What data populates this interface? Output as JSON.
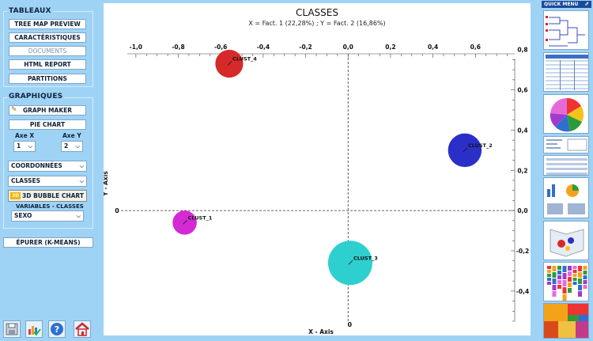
{
  "tableaux": {
    "title": "TABLEAUX",
    "buttons": [
      "TREE MAP PREVIEW",
      "CARACTÉRISTIQUES",
      "DOCUMENTS",
      "HTML REPORT",
      "PARTITIONS"
    ]
  },
  "graphiques": {
    "title": "GRAPHIQUES",
    "graph_maker": "GRAPH MAKER",
    "pie_chart": "PIE CHART",
    "axe_x_label": "Axe X",
    "axe_x_value": "1",
    "axe_y_label": "Axe Y",
    "axe_y_value": "2",
    "coordonnees": "COORDONNÉES",
    "classes": "CLASSES",
    "bubble_badge": "3D",
    "bubble_chart": "3D BUBBLE CHART",
    "variables_label": "VARIABLES - CLASSES",
    "variable_value": "SEXO"
  },
  "epurer": "ÉPURER (K-MEANS)",
  "bottom_icons": [
    "save-icon",
    "bar-chart-check-icon",
    "help-icon",
    "home-icon"
  ],
  "quick_menu": {
    "title": "QUICK MENU",
    "thumbnails": [
      "dendrogram-thumb",
      "table-thumb",
      "pie-thumb",
      "report-thumb",
      "data-table-thumb",
      "mini-charts-thumb",
      "3d-bubble-thumb",
      "stacked-bar-thumb",
      "treemap-thumb"
    ]
  },
  "chart_data": {
    "type": "scatter",
    "title": "CLASSES",
    "subtitle": "X = Fact. 1 (22,28%) ; Y = Fact. 2 (16,86%)",
    "xlabel": "X - Axis",
    "ylabel": "Y - Axis",
    "xlim": [
      -1.1,
      0.8
    ],
    "ylim": [
      -0.55,
      0.85
    ],
    "x_ticks": [
      "-1,0",
      "-0,8",
      "-0,6",
      "-0,4",
      "-0,2",
      "0,0",
      "0,2",
      "0,4",
      "0,6"
    ],
    "x_tick_values": [
      -1.0,
      -0.8,
      -0.6,
      -0.4,
      -0.2,
      0.0,
      0.2,
      0.4,
      0.6
    ],
    "y_ticks": [
      "0,8",
      "0,6",
      "0,4",
      "0,2",
      "0,0",
      "-0,2",
      "-0,4"
    ],
    "y_tick_values": [
      0.8,
      0.6,
      0.4,
      0.2,
      0.0,
      -0.2,
      -0.4
    ],
    "origin_x_label": "0",
    "origin_y_label": "0",
    "points": [
      {
        "name": "CLUST_4",
        "x": -0.56,
        "y": 0.73,
        "size": 0.3,
        "color": "#d62a2a"
      },
      {
        "name": "CLUST_2",
        "x": 0.55,
        "y": 0.3,
        "size": 0.5,
        "color": "#2a2fc7"
      },
      {
        "name": "CLUST_1",
        "x": -0.77,
        "y": -0.06,
        "size": 0.2,
        "color": "#d42ad4"
      },
      {
        "name": "CLUST_3",
        "x": 0.01,
        "y": -0.26,
        "size": 1.0,
        "color": "#2ecfcf"
      }
    ]
  }
}
